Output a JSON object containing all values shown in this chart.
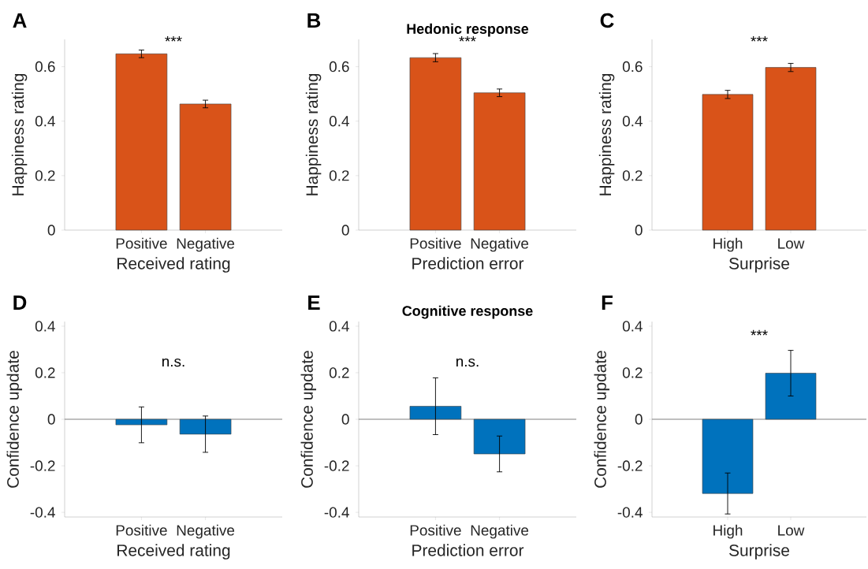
{
  "chart_data": [
    {
      "type": "bar",
      "xlabel": "Received rating",
      "ylabel": "Happiness rating",
      "categories": [
        "Positive",
        "Negative"
      ],
      "values": [
        0.647,
        0.463
      ],
      "errors": [
        0.014,
        0.014
      ],
      "color": "#d95319",
      "ylim": [
        0,
        0.7
      ],
      "yticks": [
        0,
        0.2,
        0.4,
        0.6
      ],
      "annotations": [
        "A",
        "***"
      ]
    },
    {
      "type": "bar",
      "title": "Hedonic response",
      "xlabel": "Prediction error",
      "ylabel": "Happiness rating",
      "categories": [
        "Positive",
        "Negative"
      ],
      "values": [
        0.633,
        0.504
      ],
      "errors": [
        0.015,
        0.014
      ],
      "color": "#d95319",
      "ylim": [
        0,
        0.7
      ],
      "yticks": [
        0,
        0.2,
        0.4,
        0.6
      ],
      "annotations": [
        "B",
        "***"
      ]
    },
    {
      "type": "bar",
      "xlabel": "Surprise",
      "ylabel": "Happiness rating",
      "categories": [
        "High",
        "Low"
      ],
      "values": [
        0.498,
        0.597
      ],
      "errors": [
        0.015,
        0.015
      ],
      "color": "#d95319",
      "ylim": [
        0,
        0.7
      ],
      "yticks": [
        0,
        0.2,
        0.4,
        0.6
      ],
      "annotations": [
        "C",
        "***"
      ]
    },
    {
      "type": "bar",
      "xlabel": "Received rating",
      "ylabel": "Confidence update",
      "categories": [
        "Positive",
        "Negative"
      ],
      "values": [
        -0.024,
        -0.064
      ],
      "errors": [
        0.077,
        0.078
      ],
      "color": "#0072bd",
      "ylim": [
        -0.42,
        0.42
      ],
      "yticks": [
        -0.4,
        -0.2,
        0,
        0.2,
        0.4
      ],
      "ref_lines": [
        {
          "axis": "y",
          "value": 0,
          "color": "#808080"
        }
      ],
      "annotations": [
        "D",
        "n.s."
      ]
    },
    {
      "type": "bar",
      "title": "Cognitive response",
      "xlabel": "Prediction error",
      "ylabel": "Confidence update",
      "categories": [
        "Positive",
        "Negative"
      ],
      "values": [
        0.056,
        -0.149
      ],
      "errors": [
        0.122,
        0.077
      ],
      "color": "#0072bd",
      "ylim": [
        -0.42,
        0.42
      ],
      "yticks": [
        -0.4,
        -0.2,
        0,
        0.2,
        0.4
      ],
      "ref_lines": [
        {
          "axis": "y",
          "value": 0,
          "color": "#808080"
        }
      ],
      "annotations": [
        "E",
        "n.s."
      ]
    },
    {
      "type": "bar",
      "xlabel": "Surprise",
      "ylabel": "Confidence update",
      "categories": [
        "High",
        "Low"
      ],
      "values": [
        -0.319,
        0.198
      ],
      "errors": [
        0.088,
        0.098
      ],
      "color": "#0072bd",
      "ylim": [
        -0.42,
        0.42
      ],
      "yticks": [
        -0.4,
        -0.2,
        0,
        0.2,
        0.4
      ],
      "ref_lines": [
        {
          "axis": "y",
          "value": 0,
          "color": "#808080"
        }
      ],
      "annotations": [
        "F",
        "***"
      ]
    }
  ]
}
